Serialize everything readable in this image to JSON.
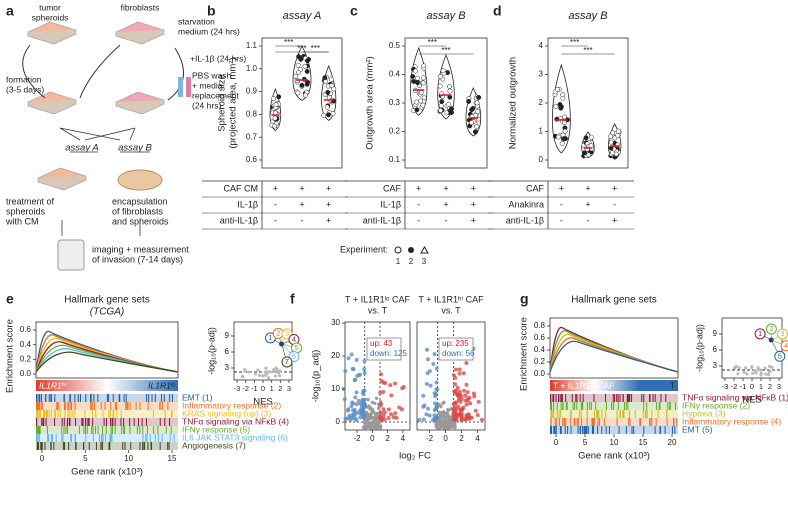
{
  "panel_a": {
    "label": "a",
    "tumor_spheroids": [
      "tumor",
      "spheroids"
    ],
    "fibroblasts": "fibroblasts",
    "starvation": [
      "starvation",
      "medium (24 hrs)"
    ],
    "formation": [
      "formation",
      "(3-5 days)"
    ],
    "il1b": "+IL-1β (24 hrs)",
    "pbs": [
      "PBS wash",
      "+ media",
      "replacement",
      "(24 hrs)"
    ],
    "assay_a": "assay A",
    "assay_b": "assay B",
    "treatment": [
      "treatment of",
      "spheroids",
      "with CM"
    ],
    "encapsulation": [
      "encapsulation",
      "of fibroblasts",
      "and spheroids"
    ],
    "imaging": [
      "imaging + measurement",
      "of invasion (7-14 days)"
    ]
  },
  "panel_b": {
    "label": "b",
    "title": "assay A",
    "ylabel": [
      "Spheroid size",
      "(projected area, mm²)"
    ],
    "yticks": [
      "0.6",
      "0.7",
      "0.8",
      "0.9",
      "1.0",
      "1.1"
    ],
    "stars": [
      "***",
      "***",
      "***"
    ],
    "rows": [
      [
        "CAF CM",
        "+",
        "+",
        "+"
      ],
      [
        "IL-1β",
        "-",
        "+",
        "+"
      ],
      [
        "anti-IL-1β",
        "-",
        "-",
        "+"
      ]
    ]
  },
  "panel_c": {
    "label": "c",
    "title": "assay B",
    "ylabel": [
      "Outgrowth area (mm²)"
    ],
    "yticks": [
      "0.1",
      "0.2",
      "0.3",
      "0.4",
      "0.5"
    ],
    "stars": [
      "***",
      "***"
    ],
    "rows": [
      [
        "CAF",
        "+",
        "+",
        "+"
      ],
      [
        "IL-1β",
        "-",
        "+",
        "+"
      ],
      [
        "anti-IL-1β",
        "-",
        "-",
        "+"
      ]
    ]
  },
  "panel_d": {
    "label": "d",
    "title": "assay B",
    "ylabel": [
      "Normalized outgrowth"
    ],
    "yticks": [
      "0",
      "1",
      "2",
      "3",
      "4"
    ],
    "stars": [
      "***",
      "***"
    ],
    "rows": [
      [
        "CAF",
        "+",
        "+",
        "+"
      ],
      [
        "Anakinra",
        "-",
        "+",
        "-"
      ],
      [
        "anti-IL-1β",
        "-",
        "-",
        "+"
      ]
    ]
  },
  "experiment": {
    "label": "Experiment:",
    "ids": [
      "1",
      "2",
      "3"
    ]
  },
  "panel_e": {
    "label": "e",
    "title": "Hallmark gene sets",
    "subtitle": "(TCGA)",
    "ylabel": "Enrichment score",
    "yticks": [
      "0.0",
      "0.2",
      "0.4",
      "0.6"
    ],
    "bar_left": "IL1R1ʰⁱ",
    "bar_right": "IL1R1ˡᵒ",
    "xlabel": "Gene rank (x10³)",
    "xticks": [
      "0",
      "5",
      "10",
      "15"
    ],
    "sets": [
      {
        "name": "EMT (1)",
        "color": "#1f5fa8"
      },
      {
        "name": "Inflammatory response (2)",
        "color": "#e8702a"
      },
      {
        "name": "KRAS signaling (up) (3)",
        "color": "#e8c21a"
      },
      {
        "name": "TNFα signaling via NFκB (4)",
        "color": "#8b1a3a"
      },
      {
        "name": "IFNγ response (5)",
        "color": "#6aaa2a"
      },
      {
        "name": "IL6 JAK STAT3 signaling (6)",
        "color": "#5fb8e8"
      },
      {
        "name": "Angiogenesis (7)",
        "color": "#3b4a1a"
      }
    ],
    "mini_ylabel": "-log₁₀(p-adj)",
    "mini_yticks": [
      "3",
      "6",
      "9"
    ],
    "mini_xlabel": "NES",
    "mini_xticks": [
      "-3",
      "-2",
      "-1",
      "0",
      "1",
      "2",
      "3"
    ],
    "mini_ids": [
      "1",
      "2",
      "3",
      "4",
      "5",
      "6",
      "7"
    ]
  },
  "panel_f": {
    "label": "f",
    "left_title": [
      "T + IL1R1ˡᵒ CAF",
      "vs. T"
    ],
    "left_up": "up: 43",
    "left_down": "down: 125",
    "right_title": [
      "T + IL1R1ʰⁱ CAF",
      "vs. T"
    ],
    "right_up": "up: 235",
    "right_down": "down: 56",
    "ylabel": "-log₁₀(p_adj)",
    "yticks": [
      "0",
      "10",
      "20",
      "30"
    ],
    "xticks": [
      "-2",
      "0",
      "2",
      "4"
    ],
    "xlabel": "log₂ FC"
  },
  "panel_g": {
    "label": "g",
    "title": "Hallmark gene sets",
    "ylabel": "Enrichment score",
    "yticks": [
      "0.0",
      "0.2",
      "0.4",
      "0.6",
      "0.8"
    ],
    "bar_left": "T + IL1R1ʰⁱ CAF",
    "bar_right": "T",
    "xlabel": "Gene rank (x10³)",
    "xticks": [
      "0",
      "5",
      "10",
      "15",
      "20"
    ],
    "sets": [
      {
        "name": "TNFα signaling via NFκB (1)",
        "color": "#8b1a3a"
      },
      {
        "name": "IFNγ response (2)",
        "color": "#6aaa2a"
      },
      {
        "name": "Hypoxia (3)",
        "color": "#c8c020"
      },
      {
        "name": "Inflammatory response (4)",
        "color": "#e8702a"
      },
      {
        "name": "EMT (5)",
        "color": "#1f5fa8"
      }
    ],
    "mini_ylabel": "-log₁₀(p-adj)",
    "mini_yticks": [
      "3",
      "6",
      "9"
    ],
    "mini_xlabel": "NES",
    "mini_xticks": [
      "-3",
      "-2",
      "-1",
      "0",
      "1",
      "2",
      "3"
    ],
    "mini_ids": [
      "1",
      "2",
      "3",
      "4",
      "5"
    ]
  }
}
